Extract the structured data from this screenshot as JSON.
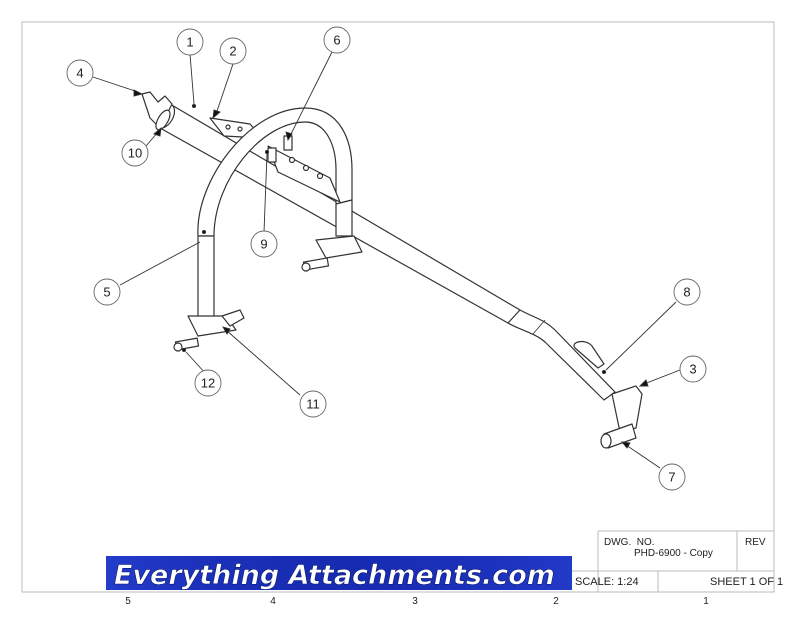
{
  "drawing": {
    "callouts": [
      {
        "num": "1"
      },
      {
        "num": "2"
      },
      {
        "num": "3"
      },
      {
        "num": "4"
      },
      {
        "num": "5"
      },
      {
        "num": "6"
      },
      {
        "num": "7"
      },
      {
        "num": "8"
      },
      {
        "num": "9"
      },
      {
        "num": "10"
      },
      {
        "num": "11"
      },
      {
        "num": "12"
      }
    ]
  },
  "title_block": {
    "dwg_no_label": "DWG.  NO.",
    "dwg_no_value": "PHD-6900 - Copy",
    "rev_label": "REV",
    "scale": "SCALE: 1:24",
    "sheet": "SHEET 1 OF 1"
  },
  "logo": {
    "text": "Everything Attachments.com",
    "colors": {
      "bg": "#1a2fb8",
      "text": "#ffffff"
    }
  },
  "zone_markers": [
    "5",
    "4",
    "3",
    "2",
    "1"
  ]
}
